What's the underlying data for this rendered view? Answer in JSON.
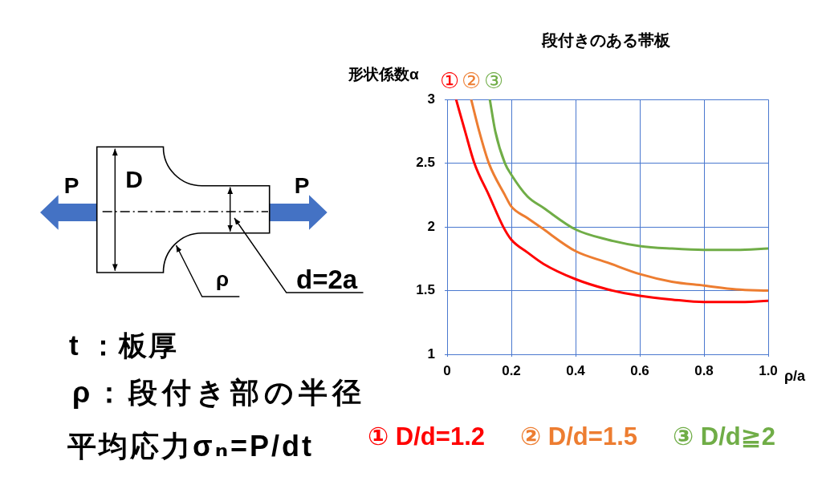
{
  "chart_data": {
    "type": "line",
    "title": "段付きのある帯板",
    "xlabel": "ρ/a",
    "ylabel": "形状係数α",
    "series": [
      {
        "name": "① D/d=1.2",
        "color": "#ff0000",
        "x": [
          0.028,
          0.056,
          0.085,
          0.13,
          0.175,
          0.2,
          0.25,
          0.3,
          0.4,
          0.5,
          0.6,
          0.7,
          0.8,
          0.9,
          1.0
        ],
        "values": [
          3,
          2.75,
          2.5,
          2.25,
          2.0,
          1.9,
          1.8,
          1.71,
          1.59,
          1.51,
          1.46,
          1.43,
          1.41,
          1.41,
          1.42
        ]
      },
      {
        "name": "② D/d=1.5",
        "color": "#ed7d31",
        "x": [
          0.075,
          0.1,
          0.13,
          0.18,
          0.2,
          0.25,
          0.29,
          0.4,
          0.5,
          0.6,
          0.7,
          0.8,
          0.9,
          1.0
        ],
        "values": [
          3,
          2.75,
          2.5,
          2.25,
          2.16,
          2.07,
          2.0,
          1.81,
          1.72,
          1.63,
          1.57,
          1.54,
          1.51,
          1.5
        ]
      },
      {
        "name": "③ D/d≧2",
        "color": "#70ad47",
        "x": [
          0.133,
          0.15,
          0.18,
          0.2,
          0.25,
          0.3,
          0.4,
          0.5,
          0.6,
          0.7,
          0.8,
          0.9,
          1.0
        ],
        "values": [
          3,
          2.75,
          2.5,
          2.41,
          2.24,
          2.15,
          1.98,
          1.9,
          1.85,
          1.83,
          1.82,
          1.82,
          1.83
        ]
      }
    ],
    "xlim": [
      0,
      1
    ],
    "xticks": [
      0,
      0.2,
      0.4,
      0.6,
      0.8,
      {
        "value": 1,
        "label": "1.0"
      }
    ],
    "ylim": [
      1,
      3
    ],
    "yticks": [
      1,
      1.5,
      2,
      2.5,
      3
    ],
    "grid": true,
    "marker": "none",
    "annotations": [
      "①",
      "②",
      "③",
      "P",
      "D",
      "P",
      "ρ",
      "d=2a",
      "t ：板厚",
      "ρ：段付き部の半径",
      "平均応力σₙ=P/dt"
    ]
  }
}
